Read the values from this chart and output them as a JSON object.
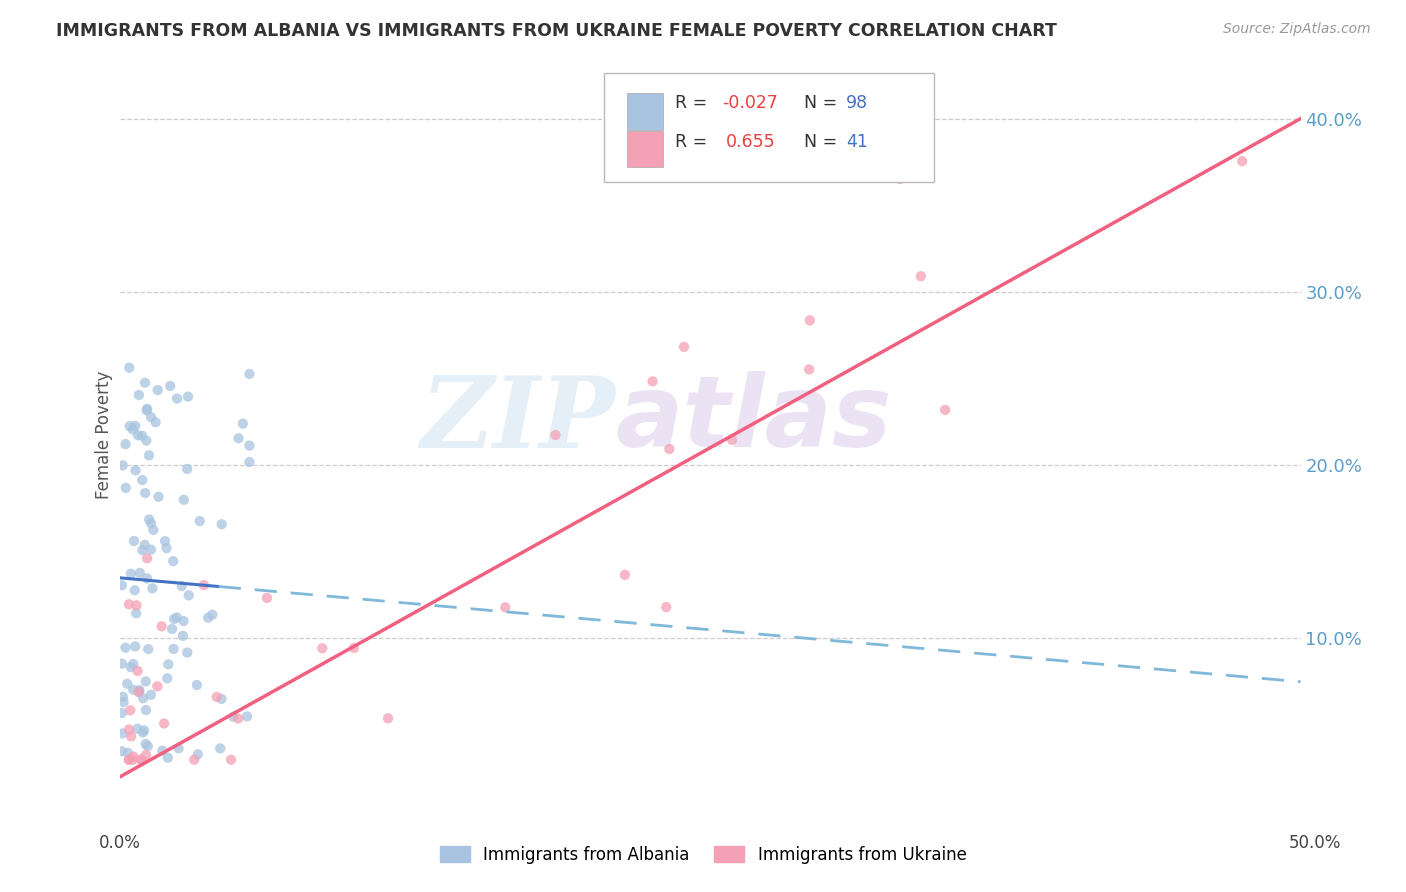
{
  "title": "IMMIGRANTS FROM ALBANIA VS IMMIGRANTS FROM UKRAINE FEMALE POVERTY CORRELATION CHART",
  "source": "Source: ZipAtlas.com",
  "ylabel": "Female Poverty",
  "legend_albania": "Immigrants from Albania",
  "legend_ukraine": "Immigrants from Ukraine",
  "r_albania": "-0.027",
  "n_albania": "98",
  "r_ukraine": "0.655",
  "n_ukraine": "41",
  "color_albania_scatter": "#a8c4e0",
  "color_ukraine_scatter": "#f4a0b5",
  "color_albania_line_solid": "#4472c4",
  "color_albania_line_dashed": "#7fb8d8",
  "color_ukraine_line": "#f06080",
  "watermark_zip": "ZIP",
  "watermark_atlas": "atlas",
  "background_color": "#ffffff",
  "xmin": 0.0,
  "xmax": 0.5,
  "ymin": 0.0,
  "ymax": 0.435,
  "yticks": [
    0.1,
    0.2,
    0.3,
    0.4
  ],
  "ytick_labels": [
    "10.0%",
    "20.0%",
    "30.0%",
    "40.0%"
  ],
  "xticks": [
    0.0,
    0.1,
    0.2,
    0.3,
    0.4,
    0.5
  ],
  "albania_line_x0": 0.0,
  "albania_line_y0": 0.135,
  "albania_line_x1": 0.5,
  "albania_line_y1": 0.075,
  "ukraine_line_x0": 0.0,
  "ukraine_line_y0": 0.02,
  "ukraine_line_x1": 0.5,
  "ukraine_line_y1": 0.4
}
